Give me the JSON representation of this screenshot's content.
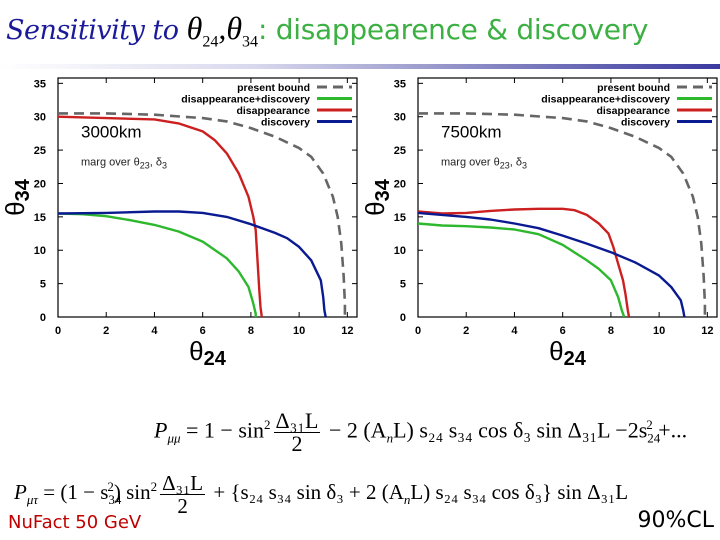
{
  "title": {
    "prefix": "Sensitivity to ",
    "theta": "θ",
    "sub1": "24",
    "comma": ",",
    "sub2": "34",
    "colon": ":",
    "suffix": " disappearence & discovery"
  },
  "colors": {
    "title_italic": "#1a1a9a",
    "title_green": "#3cb043",
    "present_bound": "#666666",
    "disappearance_discovery": "#2db82d",
    "disappearance": "#cc2020",
    "discovery": "#0a1a90",
    "footer_left": "#c00000"
  },
  "chart_data": [
    {
      "type": "line",
      "title": "3000km",
      "annotation": "marg over θ23, δ3",
      "xlabel": "θ24",
      "ylabel": "θ34",
      "xlim": [
        0,
        12.4
      ],
      "ylim": [
        0,
        35.8
      ],
      "xticks": [
        0,
        2,
        4,
        6,
        8,
        10,
        12
      ],
      "yticks": [
        0,
        5,
        10,
        15,
        20,
        25,
        30,
        35
      ],
      "grid": false,
      "legend_position": "upper right",
      "legend": [
        "present bound",
        "disappearance+discovery",
        "disappearance",
        "discovery"
      ],
      "series": [
        {
          "name": "present bound",
          "style": "dashed",
          "color": "#666666",
          "x": [
            0,
            2,
            4,
            6,
            7,
            8,
            9,
            10,
            10.5,
            11,
            11.4,
            11.6,
            11.75,
            11.85,
            11.9,
            11.9
          ],
          "y": [
            30.5,
            30.5,
            30.3,
            29.8,
            29.3,
            28.3,
            27.0,
            25.3,
            24.0,
            21.5,
            18.0,
            15.0,
            11.0,
            6.0,
            2.0,
            0
          ]
        },
        {
          "name": "disappearance+discovery",
          "style": "solid",
          "color": "#2db82d",
          "x": [
            0,
            1,
            2,
            3,
            4,
            5,
            6,
            7,
            7.5,
            7.9,
            8.1,
            8.2,
            8.2
          ],
          "y": [
            15.5,
            15.4,
            15.1,
            14.5,
            13.8,
            12.8,
            11.3,
            8.8,
            6.8,
            4.5,
            2.0,
            0.5,
            0
          ]
        },
        {
          "name": "disappearance",
          "style": "solid",
          "color": "#cc2020",
          "x": [
            0,
            2,
            4,
            5,
            6,
            6.5,
            7,
            7.5,
            7.9,
            8.1,
            8.2,
            8.25,
            8.3,
            8.35,
            8.4,
            8.45
          ],
          "y": [
            30.0,
            29.8,
            29.6,
            29.0,
            27.8,
            26.5,
            24.5,
            21.5,
            18.0,
            15.0,
            13.0,
            10.0,
            7.0,
            4.0,
            1.5,
            0
          ]
        },
        {
          "name": "discovery",
          "style": "solid",
          "color": "#0a1a90",
          "x": [
            0,
            2,
            4,
            5,
            6,
            7,
            8,
            9,
            9.5,
            10,
            10.5,
            10.9,
            11.0,
            11.05,
            11.1
          ],
          "y": [
            15.5,
            15.6,
            15.8,
            15.8,
            15.6,
            15.0,
            13.9,
            12.6,
            11.8,
            10.5,
            8.5,
            5.5,
            3.0,
            1.0,
            0
          ]
        }
      ]
    },
    {
      "type": "line",
      "title": "7500km",
      "annotation": "marg over θ23, δ3",
      "xlabel": "θ24",
      "ylabel": "θ34",
      "xlim": [
        0,
        12.4
      ],
      "ylim": [
        0,
        35.8
      ],
      "xticks": [
        0,
        2,
        4,
        6,
        8,
        10,
        12
      ],
      "yticks": [
        0,
        5,
        10,
        15,
        20,
        25,
        30,
        35
      ],
      "grid": false,
      "legend_position": "upper right",
      "legend": [
        "present bound",
        "disappearance+discovery",
        "disappearance",
        "discovery"
      ],
      "series": [
        {
          "name": "present bound",
          "style": "dashed",
          "color": "#666666",
          "x": [
            0,
            2,
            4,
            6,
            7,
            8,
            9,
            10,
            10.5,
            11,
            11.4,
            11.6,
            11.75,
            11.85,
            11.9,
            11.9
          ],
          "y": [
            30.5,
            30.5,
            30.3,
            29.8,
            29.3,
            28.3,
            27.0,
            25.3,
            24.0,
            21.5,
            18.0,
            15.0,
            11.0,
            6.0,
            2.0,
            0
          ]
        },
        {
          "name": "disappearance+discovery",
          "style": "solid",
          "color": "#2db82d",
          "x": [
            0,
            1,
            2,
            3,
            4,
            5,
            6,
            7,
            7.5,
            8,
            8.3,
            8.45,
            8.55
          ],
          "y": [
            14.0,
            13.7,
            13.6,
            13.4,
            13.1,
            12.4,
            10.8,
            8.5,
            7.2,
            5.5,
            3.0,
            1.0,
            0
          ]
        },
        {
          "name": "disappearance",
          "style": "solid",
          "color": "#cc2020",
          "x": [
            0,
            1,
            2,
            3,
            4,
            5,
            6,
            6.5,
            7,
            7.5,
            7.9,
            8.1,
            8.3,
            8.5,
            8.6,
            8.7,
            8.75
          ],
          "y": [
            15.8,
            15.5,
            15.6,
            15.9,
            16.1,
            16.2,
            16.2,
            16.0,
            15.3,
            14.0,
            12.5,
            10.5,
            8.0,
            5.5,
            3.5,
            1.0,
            0
          ]
        },
        {
          "name": "discovery",
          "style": "solid",
          "color": "#0a1a90",
          "x": [
            0,
            1,
            2,
            3,
            4,
            5,
            6,
            7,
            8,
            9,
            10,
            10.5,
            10.9,
            11.0,
            11.05
          ],
          "y": [
            15.6,
            15.3,
            15.0,
            14.6,
            14.0,
            13.3,
            12.2,
            11.0,
            9.7,
            8.2,
            6.2,
            4.5,
            2.5,
            1.0,
            0
          ]
        }
      ]
    }
  ],
  "formulas": {
    "p_mumu": {
      "lhs": "P",
      "lhs_sub": "μμ",
      "eq": " = 1 − sin",
      "sup2": "2",
      "frac_num": "Δ₃₁L",
      "frac_den": "2",
      "rest": " − 2 (A",
      "n_sub": "n",
      "rest2": "L) s₂₄ s₃₄ cos δ₃ sin Δ₃₁L",
      "tail": " −2s",
      "tail_sub": "24",
      "tail_sup": "2",
      "ellipsis": " +..."
    },
    "p_mutau": {
      "lhs": "P",
      "lhs_sub": "μτ",
      "eq": " = (1 − s",
      "s34_sub": "34",
      "s34_sup": "2",
      "close": ") sin",
      "sup2": "2",
      "frac_num": "Δ₃₁L",
      "frac_den": "2",
      "rest": " + {s₂₄ s₃₄ sin δ₃ + 2 (A",
      "n_sub": "n",
      "rest2": "L) s₂₄ s₃₄ cos δ₃} sin Δ₃₁L"
    }
  },
  "footer": {
    "left": "NuFact 50 GeV",
    "right": "90%CL"
  }
}
